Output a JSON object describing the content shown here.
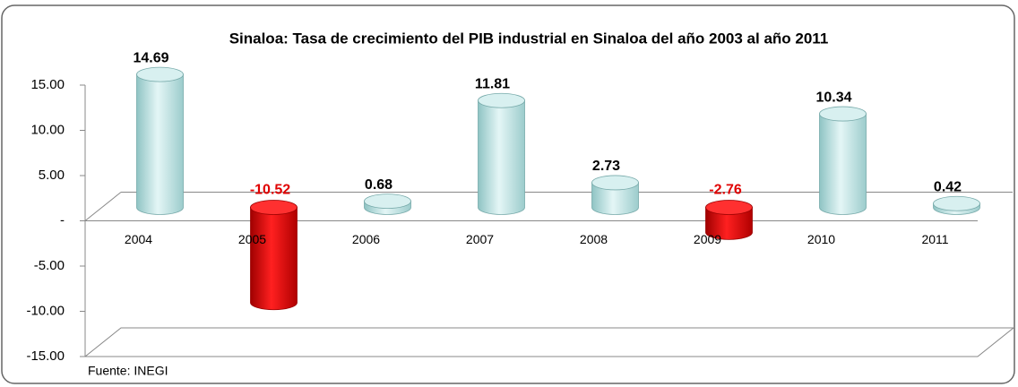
{
  "chart_data": {
    "type": "bar3d",
    "title": "Sinaloa: Tasa de crecimiento del PIB industrial en Sinaloa del año 2003 al año 2011",
    "categories": [
      "2004",
      "2005",
      "2006",
      "2007",
      "2008",
      "2009",
      "2010",
      "2011"
    ],
    "values": [
      14.69,
      -10.52,
      0.68,
      11.81,
      2.73,
      -2.76,
      10.34,
      0.42
    ],
    "color": "#bfe4e4",
    "negative_color": "#e00000",
    "ylim": [
      -15,
      15
    ],
    "yticks": [
      {
        "value": 15,
        "label": "15.00"
      },
      {
        "value": 10,
        "label": "10.00"
      },
      {
        "value": 5,
        "label": "5.00"
      },
      {
        "value": 0,
        "label": "-"
      },
      {
        "value": -5,
        "label": "-5.00"
      },
      {
        "value": -10,
        "label": "-10.00"
      },
      {
        "value": -15,
        "label": "-15.00"
      }
    ],
    "grid": false,
    "source": "Fuente: INEGI"
  }
}
